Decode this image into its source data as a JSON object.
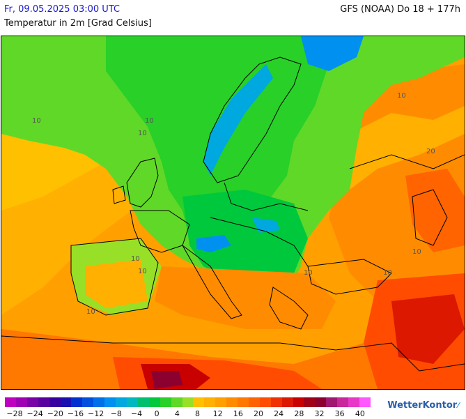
{
  "header": {
    "date": "Fr, 09.05.2025 03:00 UTC",
    "model": "GFS (NOAA) Do 18 + 177h",
    "parameter": "Temperatur in 2m [Grad Celsius]"
  },
  "map": {
    "contour_labels": [
      "10",
      "10",
      "10",
      "10",
      "10",
      "10",
      "10",
      "10",
      "10",
      "20",
      "10"
    ]
  },
  "legend": {
    "colors": [
      "#c000c0",
      "#a000b4",
      "#7a00a8",
      "#5a00a0",
      "#3800a0",
      "#1a10b0",
      "#0030d0",
      "#0050e0",
      "#0070e8",
      "#0090f0",
      "#00a8e0",
      "#00b8c0",
      "#00c070",
      "#00c83c",
      "#28d028",
      "#60d828",
      "#98e028",
      "#ffc000",
      "#ffb000",
      "#ffa000",
      "#ff8c00",
      "#ff7800",
      "#ff6400",
      "#ff4c00",
      "#f03000",
      "#dc1800",
      "#c80000",
      "#a00018",
      "#8c0030",
      "#a01870",
      "#c8289c",
      "#e838c8",
      "#ff58ff"
    ],
    "tick_labels": [
      "−28",
      "−24",
      "−20",
      "−16",
      "−12",
      "−8",
      "−4",
      "0",
      "4",
      "8",
      "12",
      "16",
      "20",
      "24",
      "28",
      "32",
      "36",
      "40"
    ]
  },
  "branding": {
    "logo_text": "WetterKontor"
  }
}
